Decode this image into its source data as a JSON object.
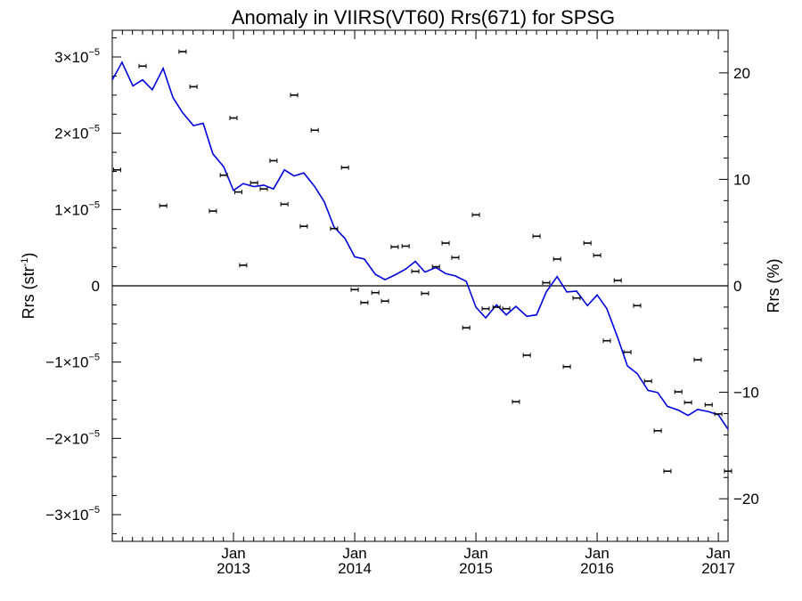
{
  "chart_data": {
    "type": "line",
    "title": "Anomaly in VIIRS(VT60) Rrs(671) for SPSG",
    "ylabel_left": "Rrs (str",
    "ylabel_left_exp": "-1",
    "ylabel_left_close": ")",
    "ylabel_right": "Rrs (%)",
    "xlim": [
      2012.0,
      2017.08
    ],
    "ylim": [
      -3.35e-05,
      3.35e-05
    ],
    "ylim_right": [
      -24,
      24
    ],
    "x_ticks": [
      {
        "x": 2013.0,
        "month": "Jan",
        "year": "2013"
      },
      {
        "x": 2014.0,
        "month": "Jan",
        "year": "2014"
      },
      {
        "x": 2015.0,
        "month": "Jan",
        "year": "2015"
      },
      {
        "x": 2016.0,
        "month": "Jan",
        "year": "2016"
      },
      {
        "x": 2017.0,
        "month": "Jan",
        "year": "2017"
      }
    ],
    "y_ticks_left": [
      {
        "value": 3e-05,
        "mant": "3×10",
        "exp": "−5"
      },
      {
        "value": 2e-05,
        "mant": "2×10",
        "exp": "−5"
      },
      {
        "value": 1e-05,
        "mant": "1×10",
        "exp": "−5"
      },
      {
        "value": 0,
        "mant": "0",
        "exp": ""
      },
      {
        "value": -1e-05,
        "mant": "−1×10",
        "exp": "−5"
      },
      {
        "value": -2e-05,
        "mant": "−2×10",
        "exp": "−5"
      },
      {
        "value": -3e-05,
        "mant": "−3×10",
        "exp": "−5"
      }
    ],
    "y_ticks_right": [
      {
        "value": 20,
        "label": "20"
      },
      {
        "value": 10,
        "label": "10"
      },
      {
        "value": 0,
        "label": "0"
      },
      {
        "value": -10,
        "label": "−10"
      },
      {
        "value": -20,
        "label": "−20"
      }
    ],
    "zero_line": 0,
    "series": [
      {
        "type": "line",
        "color": "#0000dd",
        "x": [
          2012.0,
          2012.08,
          2012.17,
          2012.25,
          2012.33,
          2012.42,
          2012.5,
          2012.58,
          2012.67,
          2012.75,
          2012.83,
          2012.92,
          2013.0,
          2013.08,
          2013.17,
          2013.25,
          2013.33,
          2013.42,
          2013.5,
          2013.58,
          2013.67,
          2013.75,
          2013.83,
          2013.92,
          2014.0,
          2014.08,
          2014.17,
          2014.25,
          2014.33,
          2014.42,
          2014.5,
          2014.58,
          2014.67,
          2014.75,
          2014.83,
          2014.92,
          2015.0,
          2015.08,
          2015.17,
          2015.25,
          2015.33,
          2015.42,
          2015.5,
          2015.58,
          2015.67,
          2015.75,
          2015.83,
          2015.92,
          2016.0,
          2016.08,
          2016.17,
          2016.25,
          2016.33,
          2016.42,
          2016.5,
          2016.58,
          2016.67,
          2016.75,
          2016.83,
          2016.92,
          2017.0,
          2017.08
        ],
        "y": [
          2.7e-05,
          2.93e-05,
          2.62e-05,
          2.7e-05,
          2.57e-05,
          2.85e-05,
          2.47e-05,
          2.27e-05,
          2.1e-05,
          2.13e-05,
          1.73e-05,
          1.56e-05,
          1.25e-05,
          1.34e-05,
          1.3e-05,
          1.32e-05,
          1.27e-05,
          1.52e-05,
          1.44e-05,
          1.48e-05,
          1.3e-05,
          1.1e-05,
          7.7e-06,
          6.2e-06,
          3.8e-06,
          3.5e-06,
          1.5e-06,
          8e-07,
          1.4e-06,
          2.2e-06,
          3.2e-06,
          1.8e-06,
          2.4e-06,
          1.6e-06,
          1.3e-06,
          6e-07,
          -2.8e-06,
          -4.2e-06,
          -2.5e-06,
          -3.8e-06,
          -2.7e-06,
          -4e-06,
          -3.8e-06,
          -8e-07,
          1.2e-06,
          -8e-07,
          -7e-07,
          -2.6e-06,
          -1.2e-06,
          -3e-06,
          -6.8e-06,
          -1.05e-05,
          -1.15e-05,
          -1.37e-05,
          -1.4e-05,
          -1.58e-05,
          -1.63e-05,
          -1.7e-05,
          -1.62e-05,
          -1.65e-05,
          -1.69e-05,
          -1.88e-05
        ]
      },
      {
        "type": "errorbar-points",
        "color": "#000000",
        "x": [
          2012.04,
          2012.25,
          2012.42,
          2012.58,
          2012.67,
          2012.83,
          2012.92,
          2013.0,
          2013.04,
          2013.08,
          2013.17,
          2013.25,
          2013.33,
          2013.42,
          2013.5,
          2013.58,
          2013.67,
          2013.83,
          2013.92,
          2014.0,
          2014.08,
          2014.17,
          2014.25,
          2014.33,
          2014.42,
          2014.5,
          2014.58,
          2014.67,
          2014.75,
          2014.83,
          2014.92,
          2015.0,
          2015.08,
          2015.17,
          2015.25,
          2015.33,
          2015.42,
          2015.5,
          2015.58,
          2015.67,
          2015.75,
          2015.83,
          2015.92,
          2016.0,
          2016.08,
          2016.17,
          2016.25,
          2016.33,
          2016.42,
          2016.5,
          2016.58,
          2016.67,
          2016.75,
          2016.83,
          2016.92,
          2017.0,
          2017.08
        ],
        "y": [
          1.52e-05,
          2.88e-05,
          1.05e-05,
          3.07e-05,
          2.61e-05,
          9.8e-06,
          1.45e-05,
          2.2e-05,
          1.23e-05,
          2.7e-06,
          1.35e-05,
          1.27e-05,
          1.64e-05,
          1.07e-05,
          2.5e-05,
          7.8e-06,
          2.04e-05,
          7.5e-06,
          1.55e-05,
          -5e-07,
          -2.2e-06,
          -9e-07,
          -2e-06,
          5.1e-06,
          5.2e-06,
          1.9e-06,
          -1e-06,
          2.5e-06,
          5.6e-06,
          3.7e-06,
          -5.5e-06,
          9.3e-06,
          -3e-06,
          -2.8e-06,
          -3e-06,
          -1.52e-05,
          -9.1e-06,
          6.5e-06,
          4e-07,
          3.5e-06,
          -1.06e-05,
          -1.6e-06,
          5.6e-06,
          4e-06,
          -7.2e-06,
          7e-07,
          -8.7e-06,
          -2.6e-06,
          -1.25e-05,
          -1.9e-05,
          -2.43e-05,
          -1.39e-05,
          -1.53e-05,
          -9.7e-06,
          -1.56e-05,
          -1.68e-05,
          -2.43e-05
        ]
      }
    ]
  }
}
